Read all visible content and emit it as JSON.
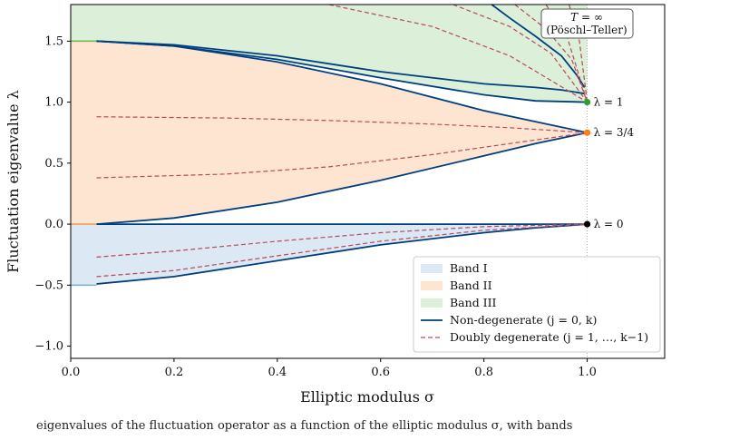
{
  "chart_data": {
    "type": "line",
    "xlabel": "Elliptic modulus σ",
    "ylabel": "Fluctuation eigenvalue λ",
    "xlim": [
      0.0,
      1.15
    ],
    "ylim": [
      -1.1,
      1.8
    ],
    "xticks": [
      0.0,
      0.2,
      0.4,
      0.6,
      0.8,
      1.0
    ],
    "yticks": [
      -1.0,
      -0.5,
      0.0,
      0.5,
      1.0,
      1.5
    ],
    "xtick_labels": [
      "0.0",
      "0.2",
      "0.4",
      "0.6",
      "0.8",
      "1.0"
    ],
    "ytick_labels": [
      "−1.0",
      "−0.5",
      "0.0",
      "0.5",
      "1.0",
      "1.5"
    ],
    "grid": false,
    "legend_position": "bottom-right",
    "bands": [
      {
        "name": "Band I",
        "color": "#dce8f3",
        "edge_color": "#7fb0d8",
        "x": [
          0.0,
          0.05,
          0.2,
          0.4,
          0.6,
          0.8,
          0.9,
          1.0
        ],
        "lower": [
          -0.5,
          -0.49,
          -0.43,
          -0.3,
          -0.17,
          -0.07,
          -0.03,
          0.0
        ],
        "upper": [
          0.0,
          0.0,
          0.0,
          0.0,
          0.0,
          0.0,
          0.0,
          0.0
        ]
      },
      {
        "name": "Band II",
        "color": "#fde5d2",
        "edge_color": "#f0a060",
        "x": [
          0.0,
          0.05,
          0.2,
          0.4,
          0.6,
          0.8,
          0.9,
          1.0
        ],
        "lower": [
          0.0,
          0.0,
          0.05,
          0.18,
          0.36,
          0.56,
          0.66,
          0.75
        ],
        "upper": [
          1.5,
          1.5,
          1.46,
          1.33,
          1.15,
          0.93,
          0.84,
          0.75
        ]
      },
      {
        "name": "Band III",
        "color": "#dcefd8",
        "edge_color": "#7ab857",
        "x": [
          0.0,
          0.05,
          0.2,
          0.4,
          0.6,
          0.8,
          0.9,
          1.0
        ],
        "lower": [
          1.5,
          1.5,
          1.46,
          1.35,
          1.2,
          1.06,
          1.01,
          1.0
        ],
        "upper": [
          1.8,
          1.8,
          1.8,
          1.8,
          1.8,
          1.8,
          1.8,
          1.8
        ]
      }
    ],
    "series": [
      {
        "name": "Non-degenerate (j = 0, k)",
        "color": "#003f7f",
        "style": "solid",
        "lines": [
          {
            "x": [
              0.05,
              0.2,
              0.4,
              0.6,
              0.8,
              0.9,
              0.95,
              0.98,
              0.995
            ],
            "y": [
              1.5,
              1.47,
              1.38,
              1.25,
              1.15,
              1.12,
              1.1,
              1.08,
              1.07
            ]
          },
          {
            "x": [
              0.05,
              0.2,
              0.4,
              0.6,
              0.8,
              0.9,
              1.0
            ],
            "y": [
              1.5,
              1.46,
              1.35,
              1.2,
              1.06,
              1.01,
              1.0
            ]
          },
          {
            "x": [
              0.05,
              0.2,
              0.4,
              0.6,
              0.8,
              0.9,
              1.0
            ],
            "y": [
              1.5,
              1.46,
              1.33,
              1.15,
              0.93,
              0.84,
              0.75
            ]
          },
          {
            "x": [
              0.05,
              0.2,
              0.4,
              0.6,
              0.8,
              0.9,
              1.0
            ],
            "y": [
              0.0,
              0.05,
              0.18,
              0.36,
              0.56,
              0.66,
              0.75
            ]
          },
          {
            "x": [
              0.05,
              0.4,
              0.8,
              1.0
            ],
            "y": [
              0.0,
              0.0,
              0.0,
              0.0
            ]
          },
          {
            "x": [
              0.05,
              0.2,
              0.4,
              0.6,
              0.8,
              0.9,
              1.0
            ],
            "y": [
              -0.49,
              -0.43,
              -0.3,
              -0.17,
              -0.07,
              -0.03,
              0.0
            ]
          },
          {
            "x": [
              0.815,
              0.85,
              0.9,
              0.95,
              0.98,
              0.995
            ],
            "y": [
              1.8,
              1.69,
              1.54,
              1.38,
              1.22,
              1.12
            ]
          }
        ]
      },
      {
        "name": "Doubly degenerate (j = 1, …, k−1)",
        "color": "#b84a5a",
        "style": "dashed",
        "lines": [
          {
            "x": [
              0.05,
              0.3,
              0.5,
              0.7,
              0.85,
              1.0
            ],
            "y": [
              0.88,
              0.87,
              0.85,
              0.82,
              0.79,
              0.75
            ]
          },
          {
            "x": [
              0.05,
              0.3,
              0.5,
              0.7,
              0.85,
              1.0
            ],
            "y": [
              0.38,
              0.41,
              0.47,
              0.57,
              0.66,
              0.75
            ]
          },
          {
            "x": [
              0.05,
              0.2,
              0.4,
              0.6,
              0.8,
              1.0
            ],
            "y": [
              -0.27,
              -0.22,
              -0.14,
              -0.07,
              -0.02,
              0.0
            ]
          },
          {
            "x": [
              0.05,
              0.2,
              0.4,
              0.6,
              0.8,
              1.0
            ],
            "y": [
              -0.43,
              -0.38,
              -0.26,
              -0.14,
              -0.05,
              0.0
            ]
          },
          {
            "x": [
              0.5,
              0.7,
              0.85,
              1.0
            ],
            "y": [
              1.8,
              1.62,
              1.38,
              1.0
            ]
          },
          {
            "x": [
              0.74,
              0.85,
              0.93,
              1.0
            ],
            "y": [
              1.8,
              1.62,
              1.4,
              1.0
            ]
          },
          {
            "x": [
              0.86,
              0.92,
              0.97,
              1.0
            ],
            "y": [
              1.8,
              1.6,
              1.35,
              1.0
            ]
          },
          {
            "x": [
              0.92,
              0.96,
              1.0
            ],
            "y": [
              1.8,
              1.55,
              1.0
            ]
          },
          {
            "x": [
              0.965,
              0.985,
              1.0
            ],
            "y": [
              1.8,
              1.5,
              1.0
            ]
          }
        ]
      }
    ],
    "markers": [
      {
        "x": 1.0,
        "y": 1.0,
        "color": "#2ca02c",
        "label": "λ = 1"
      },
      {
        "x": 1.0,
        "y": 0.75,
        "color": "#ff7f0e",
        "label": "λ = 3/4"
      },
      {
        "x": 1.0,
        "y": 0.0,
        "color": "#000000",
        "label": "λ = 0"
      }
    ],
    "vertical_line": {
      "x": 1.0,
      "style": "dotted",
      "color": "#999999"
    },
    "annotation_box": {
      "line1": "T = ∞",
      "line2": "(Pöschl–Teller)"
    },
    "legend_entries": [
      "Band I",
      "Band II",
      "Band III",
      "Non-degenerate (j = 0, k)",
      "Doubly degenerate (j = 1, …, k−1)"
    ]
  },
  "caption": "eigenvalues of the fluctuation operator as a function of the elliptic modulus σ, with bands"
}
